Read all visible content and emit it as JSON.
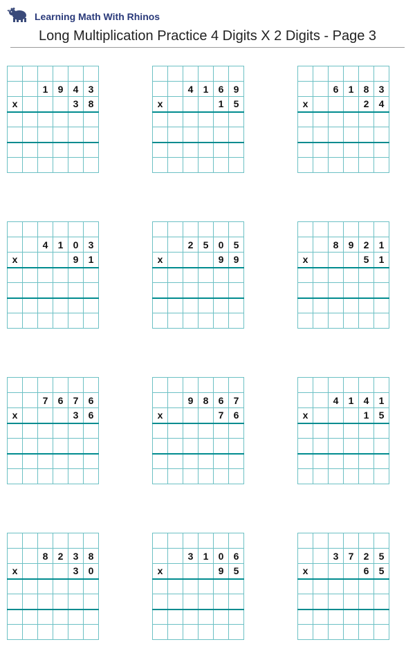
{
  "brand_text": "Learning Math With Rhinos",
  "page_title": "Long Multiplication Practice 4 Digits X 2 Digits - Page 3",
  "grid": {
    "cols": 6,
    "rows": 7,
    "cell_border_color": "#6cc0c4",
    "heavy_line_color": "#008b8f",
    "digit_color": "#111111",
    "digit_font_size": 14
  },
  "problems": [
    {
      "multiplicand": "1943",
      "multiplier": "38"
    },
    {
      "multiplicand": "4169",
      "multiplier": "15"
    },
    {
      "multiplicand": "6183",
      "multiplier": "24"
    },
    {
      "multiplicand": "4103",
      "multiplier": "91"
    },
    {
      "multiplicand": "2505",
      "multiplier": "99"
    },
    {
      "multiplicand": "8921",
      "multiplier": "51"
    },
    {
      "multiplicand": "7676",
      "multiplier": "36"
    },
    {
      "multiplicand": "9867",
      "multiplier": "76"
    },
    {
      "multiplicand": "4141",
      "multiplier": "15"
    },
    {
      "multiplicand": "8238",
      "multiplier": "30"
    },
    {
      "multiplicand": "3106",
      "multiplier": "95"
    },
    {
      "multiplicand": "3725",
      "multiplier": "65"
    }
  ],
  "mult_sign": "x"
}
